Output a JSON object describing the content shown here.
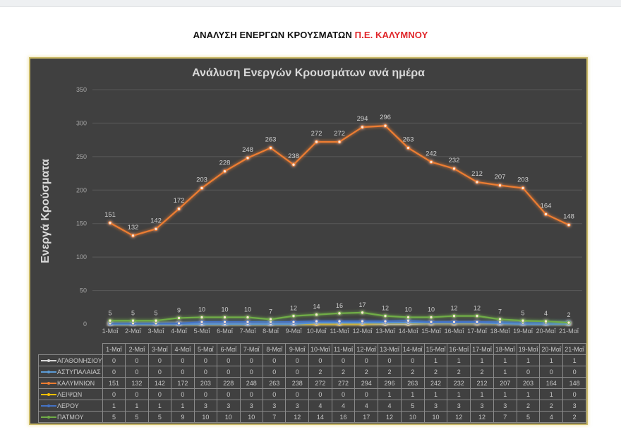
{
  "page": {
    "title_main": "ΑΝΑΛΥΣΗ ΕΝΕΡΓΩΝ ΚΡΟΥΣΜΑΤΩΝ",
    "title_accent": "Π.Ε. ΚΑΛΥΜΝΟΥ",
    "accent_color": "#e0262a"
  },
  "chart_data": {
    "type": "line",
    "title": "Ανάλυση Ενεργών Κρουσμάτων ανά ημέρα",
    "xlabel": "",
    "ylabel": "Ενεργά Κρούσματα",
    "ylim": [
      0,
      350
    ],
    "yticks": [
      0,
      50,
      100,
      150,
      200,
      250,
      300,
      350
    ],
    "grid": true,
    "legend_position": "data-table-below",
    "background": "#404040",
    "categories": [
      "1-Μαΐ",
      "2-Μαΐ",
      "3-Μαΐ",
      "4-Μαΐ",
      "5-Μαΐ",
      "6-Μαΐ",
      "7-Μαΐ",
      "8-Μαΐ",
      "9-Μαΐ",
      "10-Μαΐ",
      "11-Μαΐ",
      "12-Μαΐ",
      "13-Μαΐ",
      "14-Μαΐ",
      "15-Μαΐ",
      "16-Μαΐ",
      "17-Μαΐ",
      "18-Μαΐ",
      "19-Μαΐ",
      "20-Μαΐ",
      "21-Μαΐ"
    ],
    "series": [
      {
        "name": "ΑΓΑΘΟΝΗΣΙΟΥ",
        "color": "#d9d9d9",
        "values": [
          0,
          0,
          0,
          0,
          0,
          0,
          0,
          0,
          0,
          0,
          0,
          0,
          0,
          0,
          1,
          1,
          1,
          1,
          1,
          1,
          1
        ]
      },
      {
        "name": "ΑΣΤΥΠΑΛΑΙΑΣ",
        "color": "#5b9bd5",
        "values": [
          0,
          0,
          0,
          0,
          0,
          0,
          0,
          0,
          0,
          2,
          2,
          2,
          2,
          2,
          2,
          2,
          2,
          1,
          0,
          0,
          0
        ]
      },
      {
        "name": "ΚΑΛΥΜΝΙΩΝ",
        "color": "#ed7d31",
        "values": [
          151,
          132,
          142,
          172,
          203,
          228,
          248,
          263,
          238,
          272,
          272,
          294,
          296,
          263,
          242,
          232,
          212,
          207,
          203,
          164,
          148
        ]
      },
      {
        "name": "ΛΕΙΨΩΝ",
        "color": "#ffc000",
        "values": [
          0,
          0,
          0,
          0,
          0,
          0,
          0,
          0,
          0,
          0,
          0,
          0,
          1,
          1,
          1,
          1,
          1,
          1,
          1,
          1,
          0
        ]
      },
      {
        "name": "ΛΕΡΟΥ",
        "color": "#4472c4",
        "values": [
          1,
          1,
          1,
          1,
          3,
          3,
          3,
          3,
          3,
          4,
          4,
          4,
          4,
          5,
          3,
          3,
          3,
          3,
          2,
          2,
          3
        ]
      },
      {
        "name": "ΠΑΤΜΟΥ",
        "color": "#70ad47",
        "values": [
          5,
          5,
          5,
          9,
          10,
          10,
          10,
          7,
          12,
          14,
          16,
          17,
          12,
          10,
          10,
          12,
          12,
          7,
          5,
          4,
          2
        ]
      }
    ]
  }
}
